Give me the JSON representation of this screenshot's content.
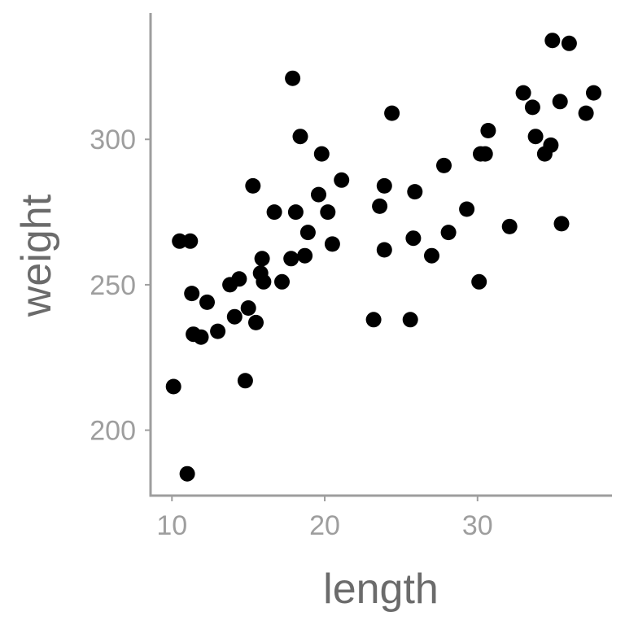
{
  "chart_data": {
    "type": "scatter",
    "xlabel": "length",
    "ylabel": "weight",
    "xlim": [
      8.6,
      38.8
    ],
    "ylim": [
      177.5,
      344
    ],
    "xticks": [
      10,
      20,
      30
    ],
    "yticks": [
      200,
      250,
      300
    ],
    "grid": false,
    "point_color": "#000000",
    "axis_color": "#9e9e9e",
    "points": [
      {
        "x": 10.1,
        "y": 215
      },
      {
        "x": 10.5,
        "y": 265
      },
      {
        "x": 11.0,
        "y": 185
      },
      {
        "x": 11.2,
        "y": 265
      },
      {
        "x": 11.3,
        "y": 247
      },
      {
        "x": 11.4,
        "y": 233
      },
      {
        "x": 11.9,
        "y": 232
      },
      {
        "x": 12.3,
        "y": 244
      },
      {
        "x": 13.0,
        "y": 234
      },
      {
        "x": 13.8,
        "y": 250
      },
      {
        "x": 14.1,
        "y": 239
      },
      {
        "x": 14.4,
        "y": 252
      },
      {
        "x": 14.8,
        "y": 217
      },
      {
        "x": 15.0,
        "y": 242
      },
      {
        "x": 15.3,
        "y": 284
      },
      {
        "x": 15.5,
        "y": 237
      },
      {
        "x": 15.8,
        "y": 254
      },
      {
        "x": 15.9,
        "y": 259
      },
      {
        "x": 16.0,
        "y": 251
      },
      {
        "x": 16.7,
        "y": 275
      },
      {
        "x": 17.2,
        "y": 251
      },
      {
        "x": 17.8,
        "y": 259
      },
      {
        "x": 17.9,
        "y": 321
      },
      {
        "x": 18.1,
        "y": 275
      },
      {
        "x": 18.4,
        "y": 301
      },
      {
        "x": 18.7,
        "y": 260
      },
      {
        "x": 18.9,
        "y": 268
      },
      {
        "x": 19.6,
        "y": 281
      },
      {
        "x": 19.8,
        "y": 295
      },
      {
        "x": 20.2,
        "y": 275
      },
      {
        "x": 20.5,
        "y": 264
      },
      {
        "x": 21.1,
        "y": 286
      },
      {
        "x": 23.2,
        "y": 238
      },
      {
        "x": 23.6,
        "y": 277
      },
      {
        "x": 23.9,
        "y": 284
      },
      {
        "x": 23.9,
        "y": 262
      },
      {
        "x": 24.4,
        "y": 309
      },
      {
        "x": 25.6,
        "y": 238
      },
      {
        "x": 25.8,
        "y": 266
      },
      {
        "x": 25.9,
        "y": 282
      },
      {
        "x": 27.0,
        "y": 260
      },
      {
        "x": 27.8,
        "y": 291
      },
      {
        "x": 28.1,
        "y": 268
      },
      {
        "x": 29.3,
        "y": 276
      },
      {
        "x": 30.1,
        "y": 251
      },
      {
        "x": 30.2,
        "y": 295
      },
      {
        "x": 30.5,
        "y": 295
      },
      {
        "x": 30.7,
        "y": 303
      },
      {
        "x": 32.1,
        "y": 270
      },
      {
        "x": 33.0,
        "y": 316
      },
      {
        "x": 33.6,
        "y": 311
      },
      {
        "x": 33.8,
        "y": 301
      },
      {
        "x": 34.4,
        "y": 295
      },
      {
        "x": 34.8,
        "y": 298
      },
      {
        "x": 34.9,
        "y": 334
      },
      {
        "x": 35.4,
        "y": 313
      },
      {
        "x": 35.5,
        "y": 271
      },
      {
        "x": 36.0,
        "y": 333
      },
      {
        "x": 37.1,
        "y": 309
      },
      {
        "x": 37.6,
        "y": 316
      }
    ]
  }
}
